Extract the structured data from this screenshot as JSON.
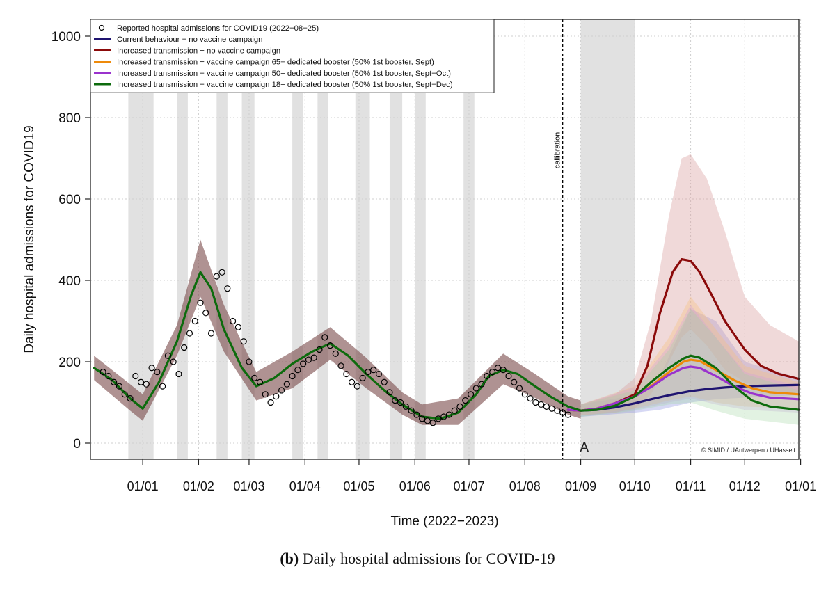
{
  "chart_data": {
    "type": "line",
    "xlabel": "Time (2022−2023)",
    "ylabel": "Daily hospital admissions for COVID19",
    "ylim": [
      0,
      1000
    ],
    "yticks": [
      0,
      200,
      400,
      600,
      800,
      1000
    ],
    "xlim": [
      "2022-12-03",
      "2023-12-31"
    ],
    "xticks": [
      {
        "date": "2023-01-01",
        "label": "01/01"
      },
      {
        "date": "2023-02-01",
        "label": "01/02"
      },
      {
        "date": "2023-03-01",
        "label": "01/03"
      },
      {
        "date": "2023-04-01",
        "label": "01/04"
      },
      {
        "date": "2023-05-01",
        "label": "01/05"
      },
      {
        "date": "2023-06-01",
        "label": "01/06"
      },
      {
        "date": "2023-07-01",
        "label": "01/07"
      },
      {
        "date": "2023-08-01",
        "label": "01/08"
      },
      {
        "date": "2023-09-01",
        "label": "01/09"
      },
      {
        "date": "2023-10-01",
        "label": "01/10"
      },
      {
        "date": "2023-11-01",
        "label": "01/11"
      },
      {
        "date": "2023-12-01",
        "label": "01/12"
      },
      {
        "date": "2024-01-01",
        "label": "01/01"
      }
    ],
    "grid": true,
    "legend_position": "top-left",
    "holiday_periods": [
      [
        "2022-12-24",
        "2023-01-07"
      ],
      [
        "2023-01-20",
        "2023-01-26"
      ],
      [
        "2023-02-11",
        "2023-02-17"
      ],
      [
        "2023-02-25",
        "2023-03-04"
      ],
      [
        "2023-03-25",
        "2023-03-31"
      ],
      [
        "2023-04-08",
        "2023-04-14"
      ],
      [
        "2023-04-29",
        "2023-05-07"
      ],
      [
        "2023-05-18",
        "2023-05-25"
      ],
      [
        "2023-06-01",
        "2023-06-07"
      ],
      [
        "2023-06-28",
        "2023-07-04"
      ],
      [
        "2023-09-01",
        "2023-10-01"
      ]
    ],
    "calibration_line": {
      "date": "2023-08-22",
      "label": "callibration"
    },
    "point_annotation": {
      "date": "2023-09-03",
      "value": -10,
      "label": "A"
    },
    "credit": "© SIMID / UAntwerpen / UHasselt",
    "observed": {
      "name": "Reported hospital admissions for COVID19 (2022−08−25)",
      "dates": [
        "2022-12-10",
        "2022-12-13",
        "2022-12-16",
        "2022-12-19",
        "2022-12-22",
        "2022-12-25",
        "2022-12-28",
        "2022-12-31",
        "2023-01-03",
        "2023-01-06",
        "2023-01-09",
        "2023-01-12",
        "2023-01-15",
        "2023-01-18",
        "2023-01-21",
        "2023-01-24",
        "2023-01-27",
        "2023-01-30",
        "2023-02-02",
        "2023-02-05",
        "2023-02-08",
        "2023-02-11",
        "2023-02-14",
        "2023-02-17",
        "2023-02-20",
        "2023-02-23",
        "2023-02-26",
        "2023-03-01",
        "2023-03-04",
        "2023-03-07",
        "2023-03-10",
        "2023-03-13",
        "2023-03-16",
        "2023-03-19",
        "2023-03-22",
        "2023-03-25",
        "2023-03-28",
        "2023-03-31",
        "2023-04-03",
        "2023-04-06",
        "2023-04-09",
        "2023-04-12",
        "2023-04-15",
        "2023-04-18",
        "2023-04-21",
        "2023-04-24",
        "2023-04-27",
        "2023-04-30",
        "2023-05-03",
        "2023-05-06",
        "2023-05-09",
        "2023-05-12",
        "2023-05-15",
        "2023-05-18",
        "2023-05-21",
        "2023-05-24",
        "2023-05-27",
        "2023-05-30",
        "2023-06-02",
        "2023-06-05",
        "2023-06-08",
        "2023-06-11",
        "2023-06-14",
        "2023-06-17",
        "2023-06-20",
        "2023-06-23",
        "2023-06-26",
        "2023-06-29",
        "2023-07-02",
        "2023-07-05",
        "2023-07-08",
        "2023-07-11",
        "2023-07-14",
        "2023-07-17",
        "2023-07-20",
        "2023-07-23",
        "2023-07-26",
        "2023-07-29",
        "2023-08-01",
        "2023-08-04",
        "2023-08-07",
        "2023-08-10",
        "2023-08-13",
        "2023-08-16",
        "2023-08-19",
        "2023-08-22",
        "2023-08-25"
      ],
      "values": [
        175,
        165,
        150,
        140,
        120,
        110,
        165,
        150,
        145,
        185,
        175,
        140,
        215,
        200,
        170,
        235,
        270,
        300,
        345,
        320,
        270,
        410,
        420,
        380,
        300,
        285,
        250,
        200,
        160,
        150,
        120,
        100,
        115,
        130,
        145,
        165,
        180,
        195,
        205,
        210,
        230,
        260,
        240,
        220,
        190,
        170,
        150,
        140,
        160,
        175,
        180,
        170,
        150,
        125,
        105,
        100,
        90,
        80,
        70,
        60,
        55,
        50,
        60,
        65,
        70,
        80,
        90,
        105,
        120,
        135,
        145,
        165,
        175,
        185,
        180,
        165,
        150,
        135,
        120,
        110,
        100,
        95,
        90,
        85,
        80,
        75,
        70
      ]
    },
    "series": [
      {
        "name": "Current behaviour − no vaccine campaign",
        "color": "#1f1470",
        "dates": [
          "2023-08-25",
          "2023-09-01",
          "2023-09-10",
          "2023-09-20",
          "2023-10-01",
          "2023-10-10",
          "2023-10-20",
          "2023-11-01",
          "2023-11-10",
          "2023-11-20",
          "2023-12-01",
          "2023-12-10",
          "2023-12-20",
          "2023-12-31"
        ],
        "values": [
          82,
          80,
          82,
          88,
          98,
          108,
          118,
          128,
          133,
          137,
          140,
          141,
          142,
          143
        ]
      },
      {
        "name": "Increased transmission − no vaccine campaign",
        "color": "#8b0a0a",
        "dates": [
          "2023-08-25",
          "2023-09-01",
          "2023-09-10",
          "2023-09-20",
          "2023-10-01",
          "2023-10-08",
          "2023-10-15",
          "2023-10-22",
          "2023-10-27",
          "2023-11-01",
          "2023-11-06",
          "2023-11-12",
          "2023-11-20",
          "2023-12-01",
          "2023-12-10",
          "2023-12-20",
          "2023-12-31"
        ],
        "values": [
          82,
          80,
          85,
          98,
          120,
          190,
          320,
          420,
          452,
          448,
          420,
          370,
          300,
          230,
          190,
          170,
          158
        ]
      },
      {
        "name": "Increased transmission − vaccine campaign 65+ dedicated booster (50% 1st booster, Sept)",
        "color": "#ee8a0a",
        "dates": [
          "2023-08-25",
          "2023-09-01",
          "2023-09-10",
          "2023-09-20",
          "2023-10-01",
          "2023-10-10",
          "2023-10-20",
          "2023-10-28",
          "2023-11-01",
          "2023-11-06",
          "2023-11-15",
          "2023-11-25",
          "2023-12-05",
          "2023-12-15",
          "2023-12-31"
        ],
        "values": [
          82,
          80,
          85,
          98,
          115,
          140,
          175,
          200,
          205,
          202,
          180,
          155,
          135,
          125,
          120
        ]
      },
      {
        "name": "Increased transmission − vaccine campaign 50+ dedicated booster (50% 1st booster, Sept−Oct)",
        "color": "#9a32cd",
        "dates": [
          "2023-08-25",
          "2023-09-01",
          "2023-09-10",
          "2023-09-20",
          "2023-10-01",
          "2023-10-10",
          "2023-10-20",
          "2023-10-28",
          "2023-11-01",
          "2023-11-06",
          "2023-11-15",
          "2023-11-25",
          "2023-12-05",
          "2023-12-15",
          "2023-12-31"
        ],
        "values": [
          82,
          80,
          85,
          98,
          115,
          138,
          168,
          185,
          188,
          185,
          165,
          140,
          122,
          112,
          108
        ]
      },
      {
        "name": "Increased transmission − vaccine campaign 18+ dedicated booster (50% 1st booster, Sept−Dec)",
        "color": "#0d6b0d",
        "dates": [
          "2022-12-05",
          "2022-12-15",
          "2022-12-25",
          "2023-01-01",
          "2023-01-10",
          "2023-01-20",
          "2023-01-28",
          "2023-02-02",
          "2023-02-08",
          "2023-02-15",
          "2023-02-25",
          "2023-03-05",
          "2023-03-15",
          "2023-03-25",
          "2023-04-05",
          "2023-04-15",
          "2023-04-25",
          "2023-05-05",
          "2023-05-15",
          "2023-05-25",
          "2023-06-05",
          "2023-06-15",
          "2023-06-25",
          "2023-07-05",
          "2023-07-12",
          "2023-07-20",
          "2023-07-28",
          "2023-08-05",
          "2023-08-15",
          "2023-08-25",
          "2023-09-01",
          "2023-09-10",
          "2023-09-20",
          "2023-10-01",
          "2023-10-10",
          "2023-10-20",
          "2023-10-28",
          "2023-11-01",
          "2023-11-06",
          "2023-11-15",
          "2023-11-25",
          "2023-12-05",
          "2023-12-15",
          "2023-12-31"
        ],
        "values": [
          185,
          155,
          110,
          85,
          150,
          250,
          365,
          420,
          380,
          280,
          185,
          140,
          160,
          195,
          225,
          245,
          215,
          170,
          130,
          95,
          65,
          60,
          75,
          120,
          165,
          180,
          170,
          145,
          115,
          90,
          80,
          82,
          92,
          115,
          150,
          185,
          208,
          215,
          210,
          185,
          140,
          105,
          90,
          82
        ]
      }
    ],
    "bands": [
      {
        "series": "Current behaviour − no vaccine campaign",
        "color": "#8a8ee0",
        "opacity": 0.35,
        "dates": [
          "2023-09-01",
          "2023-10-01",
          "2023-10-15",
          "2023-11-01",
          "2023-11-15",
          "2023-12-01",
          "2023-12-31"
        ],
        "upper": [
          95,
          118,
          165,
          330,
          300,
          200,
          160
        ],
        "lower": [
          65,
          75,
          82,
          100,
          108,
          112,
          118
        ]
      },
      {
        "series": "Increased transmission − no vaccine campaign",
        "color": "#d9a0a0",
        "opacity": 0.4,
        "dates": [
          "2023-09-01",
          "2023-09-20",
          "2023-10-01",
          "2023-10-10",
          "2023-10-20",
          "2023-10-27",
          "2023-11-01",
          "2023-11-10",
          "2023-11-20",
          "2023-12-01",
          "2023-12-15",
          "2023-12-31"
        ],
        "upper": [
          95,
          120,
          160,
          300,
          560,
          700,
          710,
          650,
          520,
          360,
          290,
          250
        ],
        "lower": [
          68,
          75,
          85,
          120,
          200,
          260,
          280,
          240,
          180,
          150,
          130,
          120
        ]
      },
      {
        "series": "Increased transmission − vaccine campaign 65+ dedicated booster (50% 1st booster, Sept)",
        "color": "#f5c17a",
        "opacity": 0.35,
        "dates": [
          "2023-09-01",
          "2023-10-01",
          "2023-10-20",
          "2023-11-01",
          "2023-11-15",
          "2023-12-01",
          "2023-12-31"
        ],
        "upper": [
          95,
          140,
          260,
          360,
          280,
          190,
          150
        ],
        "lower": [
          68,
          85,
          105,
          115,
          100,
          90,
          85
        ]
      },
      {
        "series": "Increased transmission − vaccine campaign 50+ dedicated booster (50% 1st booster, Sept−Oct)",
        "color": "#c99ae0",
        "opacity": 0.3,
        "dates": [
          "2023-09-01",
          "2023-10-01",
          "2023-10-20",
          "2023-11-01",
          "2023-11-15",
          "2023-12-01",
          "2023-12-31"
        ],
        "upper": [
          95,
          138,
          240,
          340,
          260,
          175,
          140
        ],
        "lower": [
          68,
          82,
          100,
          110,
          95,
          82,
          75
        ]
      },
      {
        "series": "Increased transmission − vaccine campaign 18+ dedicated booster (50% 1st booster, Sept−Dec)",
        "color": "#7a4a4a",
        "opacity": 0.6,
        "segment": "fit",
        "dates": [
          "2022-12-05",
          "2022-12-25",
          "2023-01-01",
          "2023-01-20",
          "2023-02-02",
          "2023-02-15",
          "2023-03-05",
          "2023-03-25",
          "2023-04-15",
          "2023-05-05",
          "2023-05-25",
          "2023-06-05",
          "2023-06-25",
          "2023-07-20",
          "2023-08-05",
          "2023-08-25",
          "2023-09-01"
        ],
        "upper": [
          215,
          145,
          120,
          290,
          500,
          340,
          175,
          225,
          285,
          210,
          125,
          95,
          110,
          220,
          175,
          115,
          105
        ],
        "lower": [
          155,
          80,
          55,
          215,
          360,
          225,
          105,
          135,
          205,
          135,
          70,
          45,
          45,
          145,
          115,
          70,
          60
        ]
      },
      {
        "series": "Increased transmission − vaccine campaign 18+ dedicated booster (50% 1st booster, Sept−Dec)",
        "color": "#9fd49f",
        "opacity": 0.3,
        "segment": "projection",
        "dates": [
          "2023-09-01",
          "2023-10-01",
          "2023-10-20",
          "2023-11-01",
          "2023-11-15",
          "2023-12-01",
          "2023-12-31"
        ],
        "upper": [
          95,
          130,
          230,
          330,
          260,
          170,
          130
        ],
        "lower": [
          65,
          80,
          95,
          100,
          80,
          60,
          45
        ]
      }
    ]
  },
  "caption": {
    "tag": "(b)",
    "text": "Daily hospital admissions for COVID-19"
  }
}
